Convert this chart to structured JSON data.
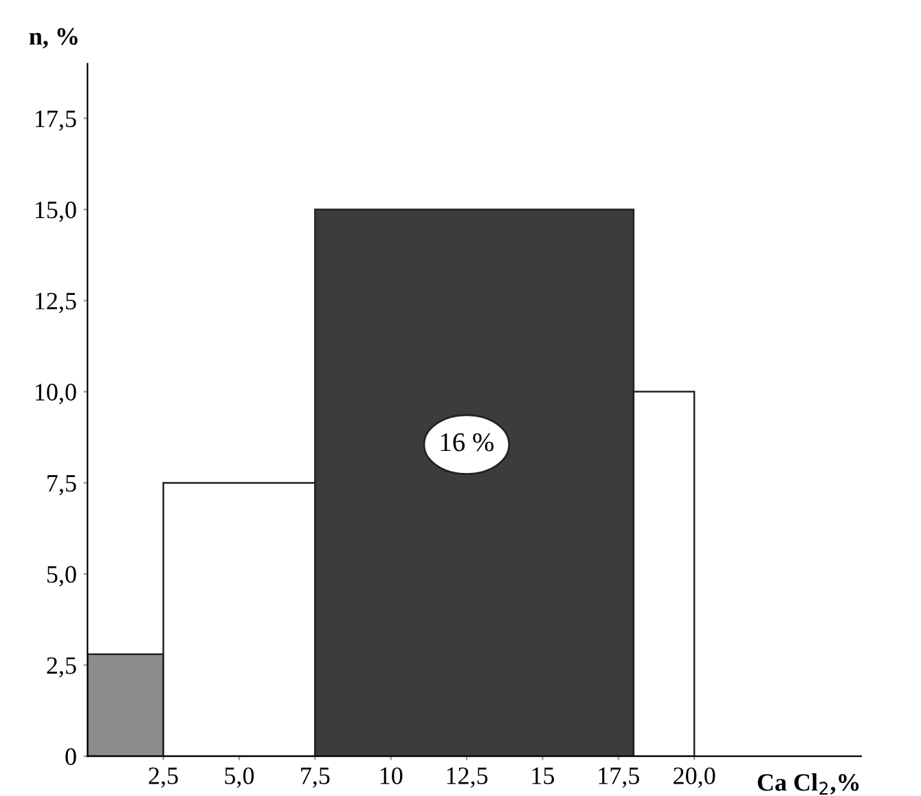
{
  "chart_data": {
    "type": "histogram",
    "bins": [
      0,
      2.5,
      7.5,
      18,
      20
    ],
    "values": [
      2.8,
      7.5,
      15.0,
      10.0
    ],
    "colors": [
      "#8c8c8c",
      "#ffffff",
      "#3c3c3c",
      "#ffffff"
    ],
    "xlabel": "Ca Cl$_{2}$,%",
    "ylabel": "n, %",
    "xlim": [
      0,
      25.5
    ],
    "ylim": [
      0,
      19
    ],
    "xticks": [
      {
        "value": 2.5,
        "label": "2,5"
      },
      {
        "value": 5.0,
        "label": "5,0"
      },
      {
        "value": 7.5,
        "label": "7,5"
      },
      10,
      {
        "value": 12.5,
        "label": "12,5"
      },
      15,
      {
        "value": 17.5,
        "label": "17,5"
      },
      {
        "value": 20.0,
        "label": "20,0"
      }
    ],
    "yticks": [
      0,
      {
        "value": 2.5,
        "label": "2,5"
      },
      {
        "value": 5.0,
        "label": "5,0"
      },
      {
        "value": 7.5,
        "label": "7,5"
      },
      {
        "value": 10.0,
        "label": "10,0"
      },
      {
        "value": 12.5,
        "label": "12,5"
      },
      {
        "value": 15.0,
        "label": "15,0"
      },
      {
        "value": 17.5,
        "label": "17,5"
      }
    ],
    "annotations": [
      "16 %"
    ],
    "grid": false
  }
}
